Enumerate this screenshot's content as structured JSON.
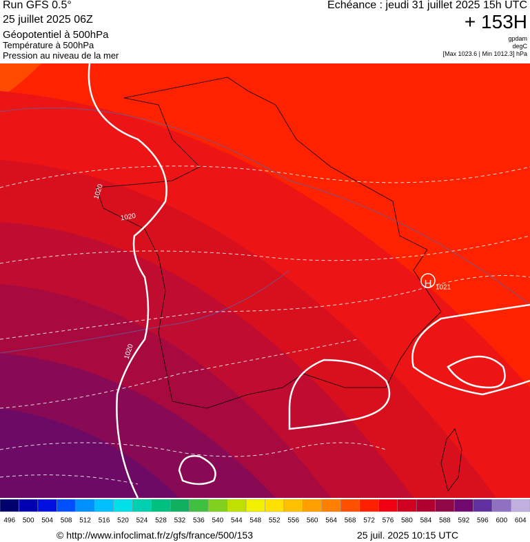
{
  "header": {
    "run": "Run GFS 0.5°",
    "date": "25 juillet 2025 06Z",
    "line1": "Géopotentiel à 500hPa",
    "line2": "Température à 500hPa",
    "line3": "Pression au niveau de la mer",
    "valid": "Echéance : jeudi 31 juillet 2025 15h UTC",
    "lead": "+ 153H",
    "unit1": "gpdam",
    "unit2": "degC",
    "range": "[Max 1023.6 | Min 1012.3] hPa"
  },
  "map": {
    "labels": [
      {
        "text": "1020"
      },
      {
        "text": "1020"
      },
      {
        "text": "1020"
      },
      {
        "text": "1021"
      },
      {
        "text": "H"
      }
    ]
  },
  "colorbar": {
    "labels": [
      496,
      500,
      504,
      508,
      512,
      516,
      520,
      524,
      528,
      532,
      536,
      540,
      544,
      548,
      552,
      556,
      560,
      564,
      568,
      572,
      576,
      580,
      584,
      588,
      592,
      596,
      600,
      604
    ],
    "colors": [
      "#00006e",
      "#0000b0",
      "#0010e0",
      "#0050ff",
      "#0090ff",
      "#00c0ff",
      "#00e0e8",
      "#00d0b0",
      "#00c080",
      "#10b060",
      "#40c040",
      "#80d020",
      "#c0e000",
      "#f0f000",
      "#ffe000",
      "#ffc000",
      "#ffa000",
      "#ff8000",
      "#ff5000",
      "#ff2000",
      "#f00010",
      "#d00020",
      "#b00030",
      "#900848",
      "#700870",
      "#6030a0",
      "#9070c0",
      "#c0b0e0"
    ]
  },
  "footer": {
    "url": "© http://www.infoclimat.fr/z/gfs/france/500/153",
    "time": "25 juil. 2025 10:15 UTC"
  }
}
